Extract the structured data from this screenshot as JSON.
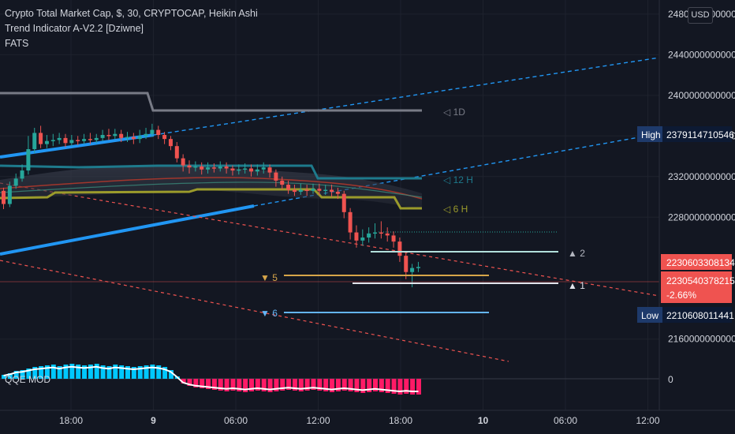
{
  "legend": {
    "title": "Crypto Total Market Cap, $, 30, CRYPTOCAP, Heikin Ashi",
    "indicator": "Trend Indicator A-V2.2 [Dziwne]",
    "study": "FATS",
    "oscillator": "QQE MOD"
  },
  "currency_button": "USD",
  "colors": {
    "background": "#131722",
    "grid": "#1e222d",
    "up": "#26a69a",
    "down": "#ef5350",
    "trend_blue": "#2196f3",
    "tf_1d": "#787b86",
    "tf_12h": "#1e7a8c",
    "tf_6h": "#9b9b2b",
    "level_orange": "#d6a549",
    "level_blue": "#64b5f6",
    "osc_up": "#00c8ff",
    "osc_down": "#ff1a66"
  },
  "chart_data": {
    "type": "candlestick",
    "x_ticks": [
      "18:00",
      "9",
      "06:00",
      "12:00",
      "18:00",
      "10",
      "06:00",
      "12:00"
    ],
    "y_ticks": [
      "2480000000000",
      "2440000000000",
      "2400000000000",
      "2360000000000",
      "2320000000000",
      "2280000000000",
      "2160000000000"
    ],
    "ylim": [
      2138000000000,
      2490000000000
    ],
    "osc_zero_label": "0",
    "high_label": "High",
    "high_value": "2379114710546",
    "low_label": "Low",
    "low_value": "2210608011441",
    "price_tag_1": "2230603308134",
    "price_tag_2": "2230540378215",
    "change_pct": "-2.66%",
    "timeframe_labels": [
      "1D",
      "12 H",
      "6 H"
    ],
    "level_labels": [
      "2",
      "5",
      "1",
      "6"
    ],
    "candles": [
      {
        "o": 2306000000000,
        "c": 2293000000000,
        "h": 2309000000000,
        "l": 2288000000000
      },
      {
        "o": 2293000000000,
        "c": 2311000000000,
        "h": 2315000000000,
        "l": 2290000000000
      },
      {
        "o": 2311000000000,
        "c": 2318000000000,
        "h": 2323000000000,
        "l": 2308000000000
      },
      {
        "o": 2318000000000,
        "c": 2326000000000,
        "h": 2332000000000,
        "l": 2315000000000
      },
      {
        "o": 2326000000000,
        "c": 2347000000000,
        "h": 2360000000000,
        "l": 2322000000000
      },
      {
        "o": 2347000000000,
        "c": 2363000000000,
        "h": 2368000000000,
        "l": 2343000000000
      },
      {
        "o": 2363000000000,
        "c": 2352000000000,
        "h": 2370000000000,
        "l": 2348000000000
      },
      {
        "o": 2352000000000,
        "c": 2355000000000,
        "h": 2361000000000,
        "l": 2348000000000
      },
      {
        "o": 2355000000000,
        "c": 2356000000000,
        "h": 2362000000000,
        "l": 2350000000000
      },
      {
        "o": 2356000000000,
        "c": 2358000000000,
        "h": 2363000000000,
        "l": 2352000000000
      },
      {
        "o": 2358000000000,
        "c": 2353000000000,
        "h": 2362000000000,
        "l": 2349000000000
      },
      {
        "o": 2353000000000,
        "c": 2356000000000,
        "h": 2361000000000,
        "l": 2350000000000
      },
      {
        "o": 2356000000000,
        "c": 2355000000000,
        "h": 2360000000000,
        "l": 2351000000000
      },
      {
        "o": 2355000000000,
        "c": 2357000000000,
        "h": 2362000000000,
        "l": 2352000000000
      },
      {
        "o": 2357000000000,
        "c": 2356000000000,
        "h": 2363000000000,
        "l": 2352000000000
      },
      {
        "o": 2356000000000,
        "c": 2358000000000,
        "h": 2362000000000,
        "l": 2353000000000
      },
      {
        "o": 2358000000000,
        "c": 2361000000000,
        "h": 2366000000000,
        "l": 2355000000000
      },
      {
        "o": 2361000000000,
        "c": 2360000000000,
        "h": 2367000000000,
        "l": 2356000000000
      },
      {
        "o": 2360000000000,
        "c": 2362000000000,
        "h": 2367000000000,
        "l": 2357000000000
      },
      {
        "o": 2362000000000,
        "c": 2358000000000,
        "h": 2366000000000,
        "l": 2354000000000
      },
      {
        "o": 2358000000000,
        "c": 2359000000000,
        "h": 2364000000000,
        "l": 2354000000000
      },
      {
        "o": 2359000000000,
        "c": 2357000000000,
        "h": 2363000000000,
        "l": 2352000000000
      },
      {
        "o": 2357000000000,
        "c": 2360000000000,
        "h": 2366000000000,
        "l": 2353000000000
      },
      {
        "o": 2360000000000,
        "c": 2362000000000,
        "h": 2368000000000,
        "l": 2357000000000
      },
      {
        "o": 2362000000000,
        "c": 2366000000000,
        "h": 2372000000000,
        "l": 2359000000000
      },
      {
        "o": 2366000000000,
        "c": 2361000000000,
        "h": 2370000000000,
        "l": 2357000000000
      },
      {
        "o": 2361000000000,
        "c": 2357000000000,
        "h": 2364000000000,
        "l": 2352000000000
      },
      {
        "o": 2357000000000,
        "c": 2350000000000,
        "h": 2360000000000,
        "l": 2346000000000
      },
      {
        "o": 2350000000000,
        "c": 2338000000000,
        "h": 2354000000000,
        "l": 2334000000000
      },
      {
        "o": 2338000000000,
        "c": 2331000000000,
        "h": 2342000000000,
        "l": 2325000000000
      },
      {
        "o": 2331000000000,
        "c": 2329000000000,
        "h": 2336000000000,
        "l": 2323000000000
      },
      {
        "o": 2329000000000,
        "c": 2330000000000,
        "h": 2335000000000,
        "l": 2325000000000
      },
      {
        "o": 2330000000000,
        "c": 2327000000000,
        "h": 2334000000000,
        "l": 2322000000000
      },
      {
        "o": 2327000000000,
        "c": 2329000000000,
        "h": 2334000000000,
        "l": 2323000000000
      },
      {
        "o": 2329000000000,
        "c": 2328000000000,
        "h": 2333000000000,
        "l": 2324000000000
      },
      {
        "o": 2328000000000,
        "c": 2330000000000,
        "h": 2335000000000,
        "l": 2325000000000
      },
      {
        "o": 2330000000000,
        "c": 2328000000000,
        "h": 2334000000000,
        "l": 2323000000000
      },
      {
        "o": 2328000000000,
        "c": 2326000000000,
        "h": 2331000000000,
        "l": 2321000000000
      },
      {
        "o": 2326000000000,
        "c": 2327000000000,
        "h": 2332000000000,
        "l": 2322000000000
      },
      {
        "o": 2327000000000,
        "c": 2328000000000,
        "h": 2333000000000,
        "l": 2323000000000
      },
      {
        "o": 2328000000000,
        "c": 2325000000000,
        "h": 2332000000000,
        "l": 2320000000000
      },
      {
        "o": 2325000000000,
        "c": 2327000000000,
        "h": 2332000000000,
        "l": 2321000000000
      },
      {
        "o": 2327000000000,
        "c": 2329000000000,
        "h": 2334000000000,
        "l": 2323000000000
      },
      {
        "o": 2329000000000,
        "c": 2324000000000,
        "h": 2332000000000,
        "l": 2319000000000
      },
      {
        "o": 2324000000000,
        "c": 2316000000000,
        "h": 2327000000000,
        "l": 2310000000000
      },
      {
        "o": 2316000000000,
        "c": 2312000000000,
        "h": 2320000000000,
        "l": 2307000000000
      },
      {
        "o": 2312000000000,
        "c": 2307000000000,
        "h": 2316000000000,
        "l": 2303000000000
      },
      {
        "o": 2307000000000,
        "c": 2305000000000,
        "h": 2312000000000,
        "l": 2301000000000
      },
      {
        "o": 2305000000000,
        "c": 2307000000000,
        "h": 2313000000000,
        "l": 2302000000000
      },
      {
        "o": 2307000000000,
        "c": 2306000000000,
        "h": 2312000000000,
        "l": 2301000000000
      },
      {
        "o": 2306000000000,
        "c": 2308000000000,
        "h": 2313000000000,
        "l": 2303000000000
      },
      {
        "o": 2308000000000,
        "c": 2306000000000,
        "h": 2313000000000,
        "l": 2302000000000
      },
      {
        "o": 2306000000000,
        "c": 2307000000000,
        "h": 2312000000000,
        "l": 2302000000000
      },
      {
        "o": 2307000000000,
        "c": 2305000000000,
        "h": 2312000000000,
        "l": 2300000000000
      },
      {
        "o": 2305000000000,
        "c": 2303000000000,
        "h": 2309000000000,
        "l": 2298000000000
      },
      {
        "o": 2303000000000,
        "c": 2285000000000,
        "h": 2306000000000,
        "l": 2279000000000
      },
      {
        "o": 2285000000000,
        "c": 2265000000000,
        "h": 2289000000000,
        "l": 2258000000000
      },
      {
        "o": 2265000000000,
        "c": 2257000000000,
        "h": 2272000000000,
        "l": 2250000000000
      },
      {
        "o": 2257000000000,
        "c": 2260000000000,
        "h": 2268000000000,
        "l": 2252000000000
      },
      {
        "o": 2260000000000,
        "c": 2264000000000,
        "h": 2270000000000,
        "l": 2255000000000
      },
      {
        "o": 2264000000000,
        "c": 2265000000000,
        "h": 2274000000000,
        "l": 2259000000000
      },
      {
        "o": 2265000000000,
        "c": 2264000000000,
        "h": 2276000000000,
        "l": 2259000000000
      },
      {
        "o": 2264000000000,
        "c": 2262000000000,
        "h": 2270000000000,
        "l": 2256000000000
      },
      {
        "o": 2262000000000,
        "c": 2256000000000,
        "h": 2266000000000,
        "l": 2250000000000
      },
      {
        "o": 2256000000000,
        "c": 2242000000000,
        "h": 2260000000000,
        "l": 2236000000000
      },
      {
        "o": 2242000000000,
        "c": 2226000000000,
        "h": 2246000000000,
        "l": 2219000000000
      },
      {
        "o": 2226000000000,
        "c": 2230000000000,
        "h": 2234000000000,
        "l": 2211000000000
      },
      {
        "o": 2230000000000,
        "c": 2231000000000,
        "h": 2236000000000,
        "l": 2226000000000
      }
    ],
    "oscillator_values": [
      0.25,
      0.35,
      0.5,
      0.55,
      0.65,
      0.75,
      0.8,
      0.85,
      0.9,
      0.8,
      0.9,
      0.95,
      0.9,
      0.85,
      0.9,
      0.95,
      0.85,
      0.8,
      0.9,
      0.85,
      0.8,
      0.75,
      0.8,
      0.85,
      0.9,
      0.85,
      0.75,
      0.55,
      0.15,
      -0.3,
      -0.45,
      -0.55,
      -0.6,
      -0.65,
      -0.7,
      -0.75,
      -0.8,
      -0.75,
      -0.8,
      -0.85,
      -0.8,
      -0.75,
      -0.8,
      -0.85,
      -0.8,
      -0.75,
      -0.7,
      -0.75,
      -0.8,
      -0.75,
      -0.7,
      -0.75,
      -0.8,
      -0.85,
      -0.8,
      -0.75,
      -0.8,
      -0.85,
      -0.9,
      -0.85,
      -0.8,
      -0.85,
      -0.9,
      -0.95,
      -1.0,
      -0.95,
      -1.0,
      -1.0
    ]
  }
}
